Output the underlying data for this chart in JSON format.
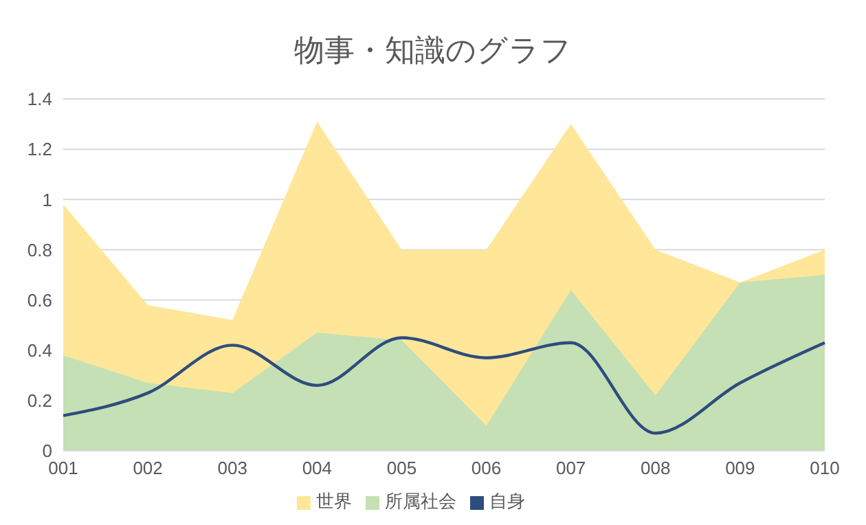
{
  "chart_data": {
    "type": "area",
    "title": "物事・知識のグラフ",
    "categories": [
      "001",
      "002",
      "003",
      "004",
      "005",
      "006",
      "007",
      "008",
      "009",
      "010"
    ],
    "series": [
      {
        "name": "世界",
        "color": "#ffe699",
        "values": [
          0.98,
          0.58,
          0.52,
          1.31,
          0.8,
          0.8,
          1.3,
          0.8,
          0.67,
          0.8
        ]
      },
      {
        "name": "所属社会",
        "color": "#c5e0b4",
        "values": [
          0.38,
          0.27,
          0.23,
          0.47,
          0.44,
          0.1,
          0.64,
          0.22,
          0.67,
          0.7
        ]
      },
      {
        "name": "自身",
        "type": "line",
        "color": "#2f4c7e",
        "values": [
          0.14,
          0.23,
          0.42,
          0.26,
          0.45,
          0.37,
          0.43,
          0.07,
          0.27,
          0.43
        ]
      }
    ],
    "ylim": [
      0,
      1.4
    ],
    "yticks": [
      0,
      0.2,
      0.4,
      0.6,
      0.8,
      1,
      1.2,
      1.4
    ],
    "grid": "y",
    "legend": "bottom",
    "marker": "none"
  }
}
